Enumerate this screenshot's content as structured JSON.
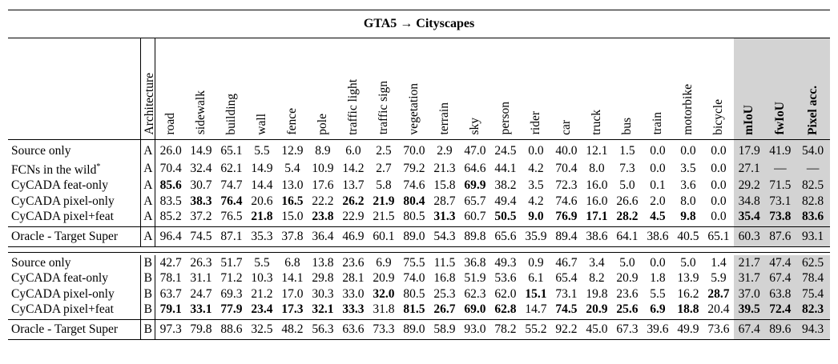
{
  "title": "GTA5 → Cityscapes",
  "columns": [
    "Architecture",
    "road",
    "sidewalk",
    "building",
    "wall",
    "fence",
    "pole",
    "traffic light",
    "traffic sign",
    "vegetation",
    "terrain",
    "sky",
    "person",
    "rider",
    "car",
    "truck",
    "bus",
    "train",
    "motorbike",
    "bicycle",
    "mIoU",
    "fwIoU",
    "Pixel acc."
  ],
  "rows_a": [
    {
      "name": "Source only",
      "arch": "A",
      "vals": [
        "26.0",
        "14.9",
        "65.1",
        "5.5",
        "12.9",
        "8.9",
        "6.0",
        "2.5",
        "70.0",
        "2.9",
        "47.0",
        "24.5",
        "0.0",
        "40.0",
        "12.1",
        "1.5",
        "0.0",
        "0.0",
        "0.0",
        "17.9",
        "41.9",
        "54.0"
      ]
    },
    {
      "name": "FCNs in the wild",
      "arch": "A",
      "vals": [
        "70.4",
        "32.4",
        "62.1",
        "14.9",
        "5.4",
        "10.9",
        "14.2",
        "2.7",
        "79.2",
        "21.3",
        "64.6",
        "44.1",
        "4.2",
        "70.4",
        "8.0",
        "7.3",
        "0.0",
        "3.5",
        "0.0",
        "27.1",
        "—",
        "—"
      ]
    },
    {
      "name": "CyCADA feat-only",
      "arch": "A",
      "vals": [
        "85.6",
        "30.7",
        "74.7",
        "14.4",
        "13.0",
        "17.6",
        "13.7",
        "5.8",
        "74.6",
        "15.8",
        "69.9",
        "38.2",
        "3.5",
        "72.3",
        "16.0",
        "5.0",
        "0.1",
        "3.6",
        "0.0",
        "29.2",
        "71.5",
        "82.5"
      ]
    },
    {
      "name": "CyCADA pixel-only",
      "arch": "A",
      "vals": [
        "83.5",
        "38.3",
        "76.4",
        "20.6",
        "16.5",
        "22.2",
        "26.2",
        "21.9",
        "80.4",
        "28.7",
        "65.7",
        "49.4",
        "4.2",
        "74.6",
        "16.0",
        "26.6",
        "2.0",
        "8.0",
        "0.0",
        "34.8",
        "73.1",
        "82.8"
      ]
    },
    {
      "name": "CyCADA pixel+feat",
      "arch": "A",
      "vals": [
        "85.2",
        "37.2",
        "76.5",
        "21.8",
        "15.0",
        "23.8",
        "22.9",
        "21.5",
        "80.5",
        "31.3",
        "60.7",
        "50.5",
        "9.0",
        "76.9",
        "17.1",
        "28.2",
        "4.5",
        "9.8",
        "0.0",
        "35.4",
        "73.8",
        "83.6"
      ]
    }
  ],
  "oracle_a": {
    "name": "Oracle - Target Super",
    "arch": "A",
    "vals": [
      "96.4",
      "74.5",
      "87.1",
      "35.3",
      "37.8",
      "36.4",
      "46.9",
      "60.1",
      "89.0",
      "54.3",
      "89.8",
      "65.6",
      "35.9",
      "89.4",
      "38.6",
      "64.1",
      "38.6",
      "40.5",
      "65.1",
      "60.3",
      "87.6",
      "93.1"
    ]
  },
  "rows_b": [
    {
      "name": "Source only",
      "arch": "B",
      "vals": [
        "42.7",
        "26.3",
        "51.7",
        "5.5",
        "6.8",
        "13.8",
        "23.6",
        "6.9",
        "75.5",
        "11.5",
        "36.8",
        "49.3",
        "0.9",
        "46.7",
        "3.4",
        "5.0",
        "0.0",
        "5.0",
        "1.4",
        "21.7",
        "47.4",
        "62.5"
      ]
    },
    {
      "name": "CyCADA feat-only",
      "arch": "B",
      "vals": [
        "78.1",
        "31.1",
        "71.2",
        "10.3",
        "14.1",
        "29.8",
        "28.1",
        "20.9",
        "74.0",
        "16.8",
        "51.9",
        "53.6",
        "6.1",
        "65.4",
        "8.2",
        "20.9",
        "1.8",
        "13.9",
        "5.9",
        "31.7",
        "67.4",
        "78.4"
      ]
    },
    {
      "name": "CyCADA pixel-only",
      "arch": "B",
      "vals": [
        "63.7",
        "24.7",
        "69.3",
        "21.2",
        "17.0",
        "30.3",
        "33.0",
        "32.0",
        "80.5",
        "25.3",
        "62.3",
        "62.0",
        "15.1",
        "73.1",
        "19.8",
        "23.6",
        "5.5",
        "16.2",
        "28.7",
        "37.0",
        "63.8",
        "75.4"
      ]
    },
    {
      "name": "CyCADA pixel+feat",
      "arch": "B",
      "vals": [
        "79.1",
        "33.1",
        "77.9",
        "23.4",
        "17.3",
        "32.1",
        "33.3",
        "31.8",
        "81.5",
        "26.7",
        "69.0",
        "62.8",
        "14.7",
        "74.5",
        "20.9",
        "25.6",
        "6.9",
        "18.8",
        "20.4",
        "39.5",
        "72.4",
        "82.3"
      ]
    }
  ],
  "oracle_b": {
    "name": "Oracle - Target Super",
    "arch": "B",
    "vals": [
      "97.3",
      "79.8",
      "88.6",
      "32.5",
      "48.2",
      "56.3",
      "63.6",
      "73.3",
      "89.0",
      "58.9",
      "93.0",
      "78.2",
      "55.2",
      "92.2",
      "45.0",
      "67.3",
      "39.6",
      "49.9",
      "73.6",
      "67.4",
      "89.6",
      "94.3"
    ]
  },
  "bold_a": [
    [],
    [],
    [
      0,
      10
    ],
    [
      1,
      2,
      4,
      6,
      7,
      8
    ],
    [
      3,
      5,
      9,
      11,
      12,
      13,
      14,
      15,
      16,
      17,
      19,
      20,
      21
    ]
  ],
  "bold_b": [
    [],
    [],
    [
      7,
      12,
      18
    ],
    [
      0,
      1,
      2,
      3,
      4,
      5,
      6,
      8,
      9,
      10,
      11,
      13,
      14,
      15,
      16,
      17,
      19,
      20,
      21
    ]
  ],
  "footnote_marker": "*"
}
